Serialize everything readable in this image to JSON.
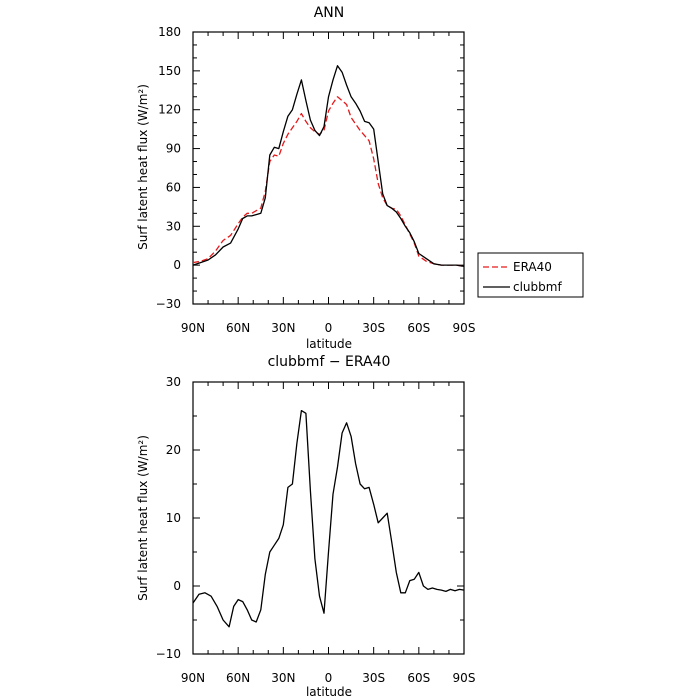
{
  "chart_data": [
    {
      "type": "line",
      "title": "ANN",
      "xlabel": "latitude",
      "ylabel": "Surf latent heat flux (W/m²)",
      "x_tick_labels": [
        "90N",
        "60N",
        "30N",
        "0",
        "30S",
        "60S",
        "90S"
      ],
      "y_tick_labels": [
        "−30",
        "0",
        "30",
        "60",
        "90",
        "120",
        "150",
        "180"
      ],
      "xlim": [
        -90,
        90
      ],
      "ylim": [
        -30,
        180
      ],
      "x": [
        -90,
        -85,
        -80,
        -75,
        -70,
        -65,
        -60,
        -57,
        -54,
        -51,
        -48,
        -45,
        -42,
        -39,
        -36,
        -33,
        -30,
        -27,
        -24,
        -21,
        -18,
        -15,
        -12,
        -9,
        -6,
        -3,
        0,
        3,
        6,
        9,
        12,
        15,
        18,
        21,
        24,
        27,
        30,
        33,
        36,
        39,
        42,
        45,
        48,
        51,
        54,
        57,
        60,
        65,
        70,
        75,
        80,
        85,
        90
      ],
      "series": [
        {
          "name": "ERA40",
          "color": "#e41a1c",
          "dashed": true,
          "values": [
            2,
            3,
            5,
            11,
            19,
            23,
            32,
            37,
            40,
            40,
            42,
            44,
            57,
            80,
            85,
            84,
            94,
            101,
            106,
            111,
            117,
            111,
            106,
            103,
            101,
            104,
            119,
            125,
            130,
            127,
            124,
            114,
            109,
            104,
            100,
            96,
            82,
            63,
            52,
            46,
            44,
            43,
            38,
            31,
            24,
            17,
            7,
            3,
            1,
            0,
            0,
            0,
            -1
          ]
        },
        {
          "name": "clubbmf",
          "color": "#000000",
          "dashed": false,
          "values": [
            0,
            2,
            4,
            8,
            14,
            17,
            28,
            36,
            38,
            38,
            39,
            40,
            52,
            85,
            91,
            90,
            103,
            115,
            120,
            132,
            143,
            127,
            112,
            104,
            100,
            107,
            130,
            143,
            154,
            149,
            139,
            130,
            125,
            119,
            111,
            110,
            105,
            80,
            55,
            46,
            44,
            41,
            36,
            30,
            25,
            18,
            9,
            5,
            1,
            0,
            0,
            0,
            -1
          ]
        }
      ],
      "legend": "right"
    },
    {
      "type": "line",
      "title": "clubbmf − ERA40",
      "xlabel": "latitude",
      "ylabel": "Surf latent heat flux (W/m²)",
      "x_tick_labels": [
        "90N",
        "60N",
        "30N",
        "0",
        "30S",
        "60S",
        "90S"
      ],
      "y_tick_labels": [
        "−10",
        "0",
        "10",
        "20",
        "30"
      ],
      "xlim": [
        -90,
        90
      ],
      "ylim": [
        -10,
        30
      ],
      "x": [
        -90,
        -86,
        -82,
        -78,
        -74,
        -70,
        -66,
        -63,
        -60,
        -57,
        -54,
        -51,
        -48,
        -45,
        -42,
        -39,
        -36,
        -33,
        -30,
        -27,
        -24,
        -21,
        -18,
        -15,
        -12,
        -9,
        -6,
        -3,
        0,
        3,
        6,
        9,
        12,
        15,
        18,
        21,
        24,
        27,
        30,
        33,
        36,
        39,
        42,
        45,
        48,
        51,
        54,
        57,
        60,
        63,
        66,
        69,
        72,
        75,
        78,
        81,
        84,
        87,
        90
      ],
      "series": [
        {
          "name": "clubbmf",
          "color": "#000000",
          "dashed": false,
          "values": [
            -2.5,
            -1.2,
            -1,
            -1.5,
            -3,
            -5,
            -6,
            -3,
            -2,
            -2.3,
            -3.5,
            -5,
            -5.3,
            -3.5,
            1.7,
            5,
            6,
            7,
            9,
            14.5,
            15,
            21,
            25.8,
            25.4,
            14,
            4,
            -1.5,
            -4,
            5,
            13.5,
            17.5,
            22.5,
            24,
            22,
            18,
            15,
            14.3,
            14.5,
            12,
            9.3,
            10,
            10.7,
            6.5,
            2,
            -1,
            -1,
            0.8,
            1,
            2,
            0,
            -0.5,
            -0.3,
            -0.5,
            -0.6,
            -0.8,
            -0.5,
            -0.7,
            -0.5,
            -0.6
          ]
        }
      ]
    }
  ]
}
